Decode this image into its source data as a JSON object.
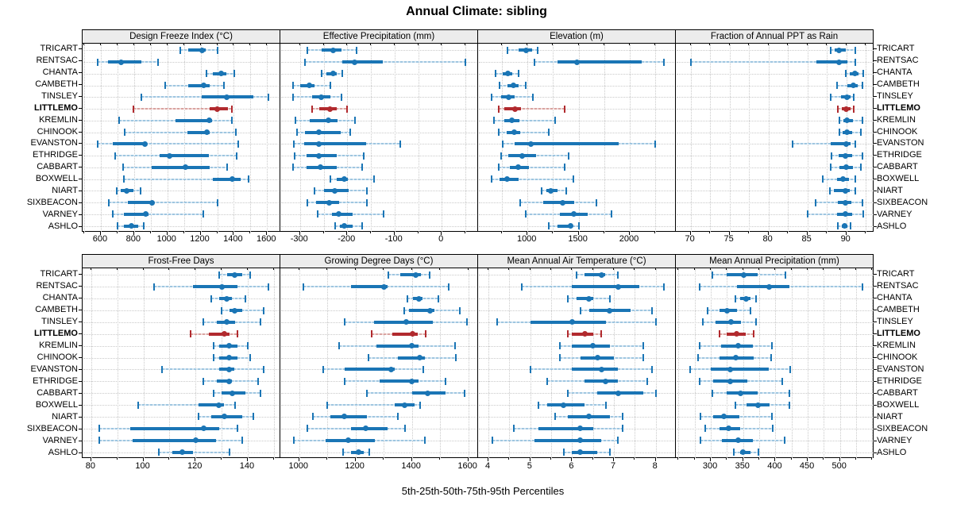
{
  "title": "Annual Climate: sibling",
  "caption": "5th-25th-50th-75th-95th Percentiles",
  "percentile_labels": [
    "5th",
    "25th",
    "50th",
    "75th",
    "95th"
  ],
  "highlight_station": "LITTLEMO",
  "colors": {
    "series_dark": "#1a75b5",
    "series_light": "#9fc6e0",
    "series_light_gap": "#d6e6f2",
    "highlight_dark": "#b12a2e",
    "highlight_light": "#d9a3a0",
    "highlight_light_gap": "#f0d8d6",
    "strip_bg": "#ececec",
    "grid": "#c9c9c9",
    "border": "#000000"
  },
  "stations": [
    "TRICART",
    "RENTSAC",
    "CHANTA",
    "CAMBETH",
    "TINSLEY",
    "LITTLEMO",
    "KREMLIN",
    "CHINOOK",
    "EVANSTON",
    "ETHRIDGE",
    "CABBART",
    "BOXWELL",
    "NIART",
    "SIXBEACON",
    "VARNEY",
    "ASHLO"
  ],
  "chart_data": [
    {
      "type": "dotplot-percentiles",
      "title": "Design Freeze Index (°C)",
      "xlim": [
        495,
        1680
      ],
      "ticks": [
        600,
        800,
        1000,
        1200,
        1400,
        1600
      ],
      "minor_step": 100,
      "grid": true,
      "values": [
        [
          1080,
          1125,
          1210,
          1230,
          1300
        ],
        [
          580,
          645,
          720,
          845,
          945
        ],
        [
          1235,
          1275,
          1325,
          1355,
          1405
        ],
        [
          985,
          1125,
          1220,
          1255,
          1340
        ],
        [
          845,
          1205,
          1355,
          1520,
          1610
        ],
        [
          795,
          1255,
          1300,
          1365,
          1390
        ],
        [
          710,
          1050,
          1250,
          1270,
          1390
        ],
        [
          745,
          1120,
          1240,
          1255,
          1410
        ],
        [
          580,
          670,
          865,
          875,
          1425
        ],
        [
          685,
          955,
          1015,
          1250,
          1415
        ],
        [
          735,
          905,
          1110,
          1255,
          1360
        ],
        [
          740,
          1275,
          1390,
          1440,
          1490
        ],
        [
          695,
          720,
          755,
          795,
          840
        ],
        [
          650,
          760,
          910,
          920,
          1300
        ],
        [
          670,
          740,
          870,
          885,
          1215
        ],
        [
          700,
          740,
          785,
          825,
          860
        ]
      ]
    },
    {
      "type": "dotplot-percentiles",
      "title": "Effective Precipitation (mm)",
      "xlim": [
        -340,
        77
      ],
      "ticks": [
        -300,
        -200,
        -100,
        0
      ],
      "minor_step": 50,
      "grid": true,
      "values": [
        [
          -285,
          -255,
          -230,
          -212,
          -180
        ],
        [
          -290,
          -210,
          -185,
          -125,
          50
        ],
        [
          -255,
          -245,
          -230,
          -222,
          -210
        ],
        [
          -315,
          -300,
          -280,
          -270,
          -235
        ],
        [
          -315,
          -275,
          -255,
          -235,
          -212
        ],
        [
          -275,
          -260,
          -236,
          -223,
          -200
        ],
        [
          -310,
          -280,
          -240,
          -220,
          -183
        ],
        [
          -307,
          -289,
          -261,
          -214,
          -194
        ],
        [
          -313,
          -292,
          -261,
          -160,
          -88
        ],
        [
          -311,
          -287,
          -260,
          -223,
          -166
        ],
        [
          -315,
          -287,
          -257,
          -222,
          -169
        ],
        [
          -236,
          -222,
          -206,
          -198,
          -144
        ],
        [
          -270,
          -250,
          -227,
          -197,
          -158
        ],
        [
          -285,
          -266,
          -239,
          -218,
          -158
        ],
        [
          -263,
          -233,
          -218,
          -188,
          -123
        ],
        [
          -225,
          -216,
          -207,
          -188,
          -168
        ]
      ]
    },
    {
      "type": "dotplot-percentiles",
      "title": "Elevation (m)",
      "xlim": [
        525,
        2450
      ],
      "ticks": [
        1000,
        1500,
        2000
      ],
      "minor_step": 250,
      "grid": true,
      "values": [
        [
          805,
          910,
          990,
          1045,
          1100
        ],
        [
          1065,
          1290,
          1480,
          2115,
          2335
        ],
        [
          685,
          755,
          805,
          850,
          910
        ],
        [
          730,
          805,
          860,
          910,
          985
        ],
        [
          650,
          740,
          815,
          875,
          1055
        ],
        [
          720,
          775,
          875,
          940,
          1360
        ],
        [
          675,
          775,
          850,
          920,
          1270
        ],
        [
          715,
          800,
          870,
          930,
          1210
        ],
        [
          755,
          875,
          1035,
          1895,
          2245
        ],
        [
          740,
          815,
          945,
          1085,
          1400
        ],
        [
          720,
          830,
          910,
          1015,
          1360
        ],
        [
          650,
          730,
          800,
          915,
          1445
        ],
        [
          1135,
          1185,
          1230,
          1290,
          1375
        ],
        [
          930,
          1150,
          1340,
          1455,
          1675
        ],
        [
          980,
          1315,
          1450,
          1590,
          1820
        ],
        [
          1205,
          1295,
          1420,
          1445,
          1505
        ]
      ]
    },
    {
      "type": "dotplot-percentiles",
      "title": "Fraction of Annual PPT as Rain",
      "xlim": [
        68.2,
        93.5
      ],
      "ticks": [
        70,
        75,
        80,
        85,
        90
      ],
      "minor_step": 2.5,
      "grid": true,
      "values": [
        [
          88.0,
          88.5,
          89.1,
          89.9,
          91.1
        ],
        [
          70.0,
          86.1,
          89.1,
          90.1,
          91.1
        ],
        [
          89.9,
          90.4,
          91.1,
          91.6,
          92.2
        ],
        [
          88.8,
          90.1,
          90.9,
          91.5,
          92.1
        ],
        [
          88.0,
          89.3,
          90.1,
          90.6,
          90.9
        ],
        [
          88.9,
          89.4,
          90.0,
          90.5,
          90.9
        ],
        [
          89.1,
          89.6,
          90.1,
          90.8,
          92.1
        ],
        [
          89.1,
          89.5,
          90.1,
          90.8,
          91.9
        ],
        [
          83.1,
          88.0,
          90.0,
          90.5,
          91.1
        ],
        [
          88.1,
          89.0,
          89.9,
          90.7,
          92.1
        ],
        [
          88.0,
          89.1,
          90.0,
          90.8,
          91.9
        ],
        [
          87.0,
          88.8,
          89.6,
          90.3,
          91.1
        ],
        [
          87.9,
          88.4,
          89.9,
          90.4,
          91.1
        ],
        [
          86.0,
          88.9,
          89.9,
          90.7,
          92.1
        ],
        [
          85.0,
          88.8,
          89.9,
          90.8,
          92.2
        ],
        [
          88.9,
          89.4,
          89.8,
          90.1,
          90.5
        ]
      ]
    },
    {
      "type": "dotplot-percentiles",
      "title": "Frost-Free Days",
      "xlim": [
        77,
        152.5
      ],
      "ticks": [
        80,
        100,
        120,
        140
      ],
      "minor_step": 10,
      "grid": true,
      "values": [
        [
          129,
          132,
          135,
          138,
          141
        ],
        [
          104,
          119,
          130,
          136,
          148
        ],
        [
          126,
          129,
          132,
          134,
          139
        ],
        [
          130,
          133,
          135,
          138,
          146
        ],
        [
          123,
          128,
          132,
          135,
          145
        ],
        [
          118,
          125,
          131,
          133,
          136
        ],
        [
          127,
          129,
          133,
          136,
          140
        ],
        [
          127,
          129,
          133,
          136,
          141
        ],
        [
          107,
          129,
          133,
          135,
          146
        ],
        [
          123,
          128,
          133,
          134,
          144
        ],
        [
          127,
          130,
          134,
          139,
          145
        ],
        [
          98,
          121,
          129,
          131,
          135
        ],
        [
          121,
          126,
          131,
          138,
          142
        ],
        [
          83,
          95,
          123,
          129,
          136
        ],
        [
          83,
          96,
          120,
          128,
          138
        ],
        [
          106,
          111,
          115,
          119,
          133
        ]
      ]
    },
    {
      "type": "dotplot-percentiles",
      "title": "Growing Degree Days (°C)",
      "xlim": [
        936,
        1635
      ],
      "ticks": [
        1000,
        1200,
        1400,
        1600
      ],
      "minor_step": 100,
      "grid": true,
      "values": [
        [
          1315,
          1360,
          1415,
          1432,
          1462
        ],
        [
          1015,
          1185,
          1300,
          1315,
          1530
        ],
        [
          1385,
          1405,
          1425,
          1438,
          1495
        ],
        [
          1372,
          1390,
          1465,
          1480,
          1570
        ],
        [
          1160,
          1265,
          1380,
          1475,
          1595
        ],
        [
          1258,
          1330,
          1403,
          1422,
          1450
        ],
        [
          1143,
          1275,
          1400,
          1425,
          1553
        ],
        [
          1246,
          1350,
          1428,
          1445,
          1556
        ],
        [
          1085,
          1160,
          1325,
          1340,
          1440
        ],
        [
          1160,
          1285,
          1400,
          1425,
          1520
        ],
        [
          1240,
          1400,
          1457,
          1520,
          1586
        ],
        [
          1100,
          1340,
          1375,
          1410,
          1430
        ],
        [
          1050,
          1110,
          1160,
          1240,
          1350
        ],
        [
          1030,
          1185,
          1235,
          1315,
          1375
        ],
        [
          980,
          1095,
          1175,
          1270,
          1445
        ],
        [
          1155,
          1185,
          1210,
          1230,
          1250
        ]
      ]
    },
    {
      "type": "dotplot-percentiles",
      "title": "Mean Annual Air Temperature (°C)",
      "xlim": [
        3.77,
        8.48
      ],
      "ticks": [
        4,
        5,
        6,
        7,
        8
      ],
      "minor_step": 0.5,
      "grid": true,
      "values": [
        [
          6.1,
          6.3,
          6.7,
          6.8,
          7.1
        ],
        [
          4.8,
          6.0,
          7.1,
          7.6,
          8.2
        ],
        [
          5.9,
          6.1,
          6.4,
          6.5,
          6.9
        ],
        [
          6.2,
          6.4,
          6.9,
          7.4,
          7.9
        ],
        [
          4.2,
          5.0,
          6.0,
          6.8,
          8.0
        ],
        [
          5.9,
          6.0,
          6.3,
          6.5,
          6.7
        ],
        [
          5.7,
          6.0,
          6.5,
          6.9,
          7.7
        ],
        [
          5.7,
          6.2,
          6.6,
          7.0,
          7.7
        ],
        [
          5.0,
          6.0,
          6.7,
          7.1,
          7.9
        ],
        [
          5.4,
          6.3,
          6.8,
          7.1,
          7.8
        ],
        [
          5.9,
          6.6,
          7.1,
          7.7,
          8.0
        ],
        [
          5.2,
          5.4,
          5.8,
          6.3,
          6.8
        ],
        [
          5.6,
          5.9,
          6.4,
          6.9,
          7.2
        ],
        [
          4.6,
          5.2,
          6.2,
          6.5,
          7.2
        ],
        [
          4.1,
          5.1,
          6.2,
          6.7,
          7.1
        ],
        [
          5.8,
          6.0,
          6.2,
          6.6,
          6.9
        ]
      ]
    },
    {
      "type": "dotplot-percentiles",
      "title": "Mean Annual Precipitation (mm)",
      "xlim": [
        247,
        552
      ],
      "ticks": [
        300,
        350,
        400,
        450,
        500
      ],
      "minor_step": 25,
      "grid": true,
      "values": [
        [
          302,
          325,
          351,
          373,
          415
        ],
        [
          282,
          340,
          390,
          422,
          535
        ],
        [
          338,
          345,
          354,
          361,
          370
        ],
        [
          295,
          313,
          325,
          341,
          361
        ],
        [
          288,
          307,
          331,
          347,
          370
        ],
        [
          313,
          325,
          340,
          354,
          366
        ],
        [
          283,
          316,
          342,
          365,
          395
        ],
        [
          280,
          313,
          338,
          366,
          393
        ],
        [
          268,
          300,
          330,
          390,
          423
        ],
        [
          283,
          304,
          330,
          357,
          411
        ],
        [
          302,
          324,
          346,
          373,
          422
        ],
        [
          338,
          355,
          373,
          391,
          421
        ],
        [
          284,
          303,
          320,
          344,
          395
        ],
        [
          291,
          313,
          327,
          346,
          396
        ],
        [
          284,
          317,
          342,
          365,
          414
        ],
        [
          336,
          345,
          350,
          361,
          373
        ]
      ]
    }
  ]
}
